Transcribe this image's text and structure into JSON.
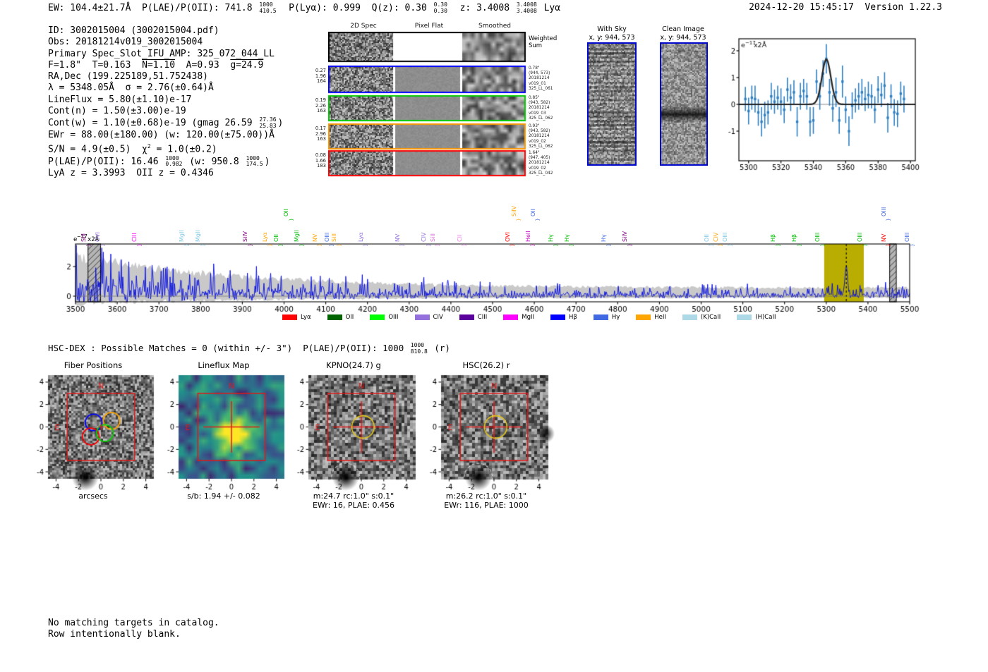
{
  "header": {
    "left_segments": [
      {
        "t": "EW: 104.4±21.7Å  P(LAE)/P(OII): 741.8 "
      },
      {
        "hi": "1000",
        "lo": "410.5"
      },
      {
        "t": "  P(Lyα): 0.999  Q(z): 0.30 "
      },
      {
        "hi": "0.30",
        "lo": "0.30"
      },
      {
        "t": "  z: 3.4008 "
      },
      {
        "hi": "3.4008",
        "lo": "3.4008"
      },
      {
        "t": " Lyα"
      }
    ],
    "datetime_version": "2024-12-20 15:45:17  Version 1.22.3"
  },
  "info_lines": [
    [
      {
        "t": "ID: 3002015004 (3002015004.pdf)"
      }
    ],
    [
      {
        "t": "Obs: 20181214v019_3002015004"
      }
    ],
    [
      {
        "t": "Primary Spec_Slot_IFU_AMP: 325_072_044_LL"
      }
    ],
    [
      {
        "t": "F=1.8\"  T=0.163  "
      },
      {
        "t": "N=1.10",
        "ov": true
      },
      {
        "t": "  A=0.93  "
      },
      {
        "t": "g=24.9",
        "ov": true
      }
    ],
    [
      {
        "t": "RA,Dec (199.225189,51.752438)"
      }
    ],
    [
      {
        "t": "λ = 5348.05Å  σ = 2.76(±0.64)Å"
      }
    ],
    [
      {
        "t": "LineFlux = 5.80(±1.10)e-17"
      }
    ],
    [
      {
        "t": "Cont(n) = 1.50(±3.00)e-19"
      }
    ],
    [
      {
        "t": "Cont(w) = 1.10(±0.68)e-19 (gmag 26.59 "
      },
      {
        "hi": "27.36",
        "lo": "25.83"
      },
      {
        "t": ")"
      }
    ],
    [
      {
        "t": "EWr = 88.00(±180.00) (w: 120.00(±75.00))Å"
      }
    ],
    [
      {
        "t": "S/N = 4.9(±0.5)  χ"
      },
      {
        "sup": "2"
      },
      {
        "t": " = 1.0(±0.2)"
      }
    ],
    [
      {
        "t": "P(LAE)/P(OII): 16.46 "
      },
      {
        "hi": "1000",
        "lo": "0.982"
      },
      {
        "t": " (w: 950.8 "
      },
      {
        "hi": "1000",
        "lo": "174.5"
      },
      {
        "t": ")"
      }
    ],
    [
      {
        "t": "LyA z = 3.3993  OII z = 0.4346"
      }
    ]
  ],
  "spec2d": {
    "col_headers": [
      "2D Spec",
      "Pixel Flat",
      "Smoothed"
    ],
    "weighted_label": "Weighted\nSum",
    "rows": [
      {
        "border": "#0000ff",
        "left": [
          "0.27",
          "1.96",
          "164"
        ],
        "right": [
          "0.78\"",
          "(944, 573)",
          "20181214",
          "v019_01",
          "325_LL_061"
        ]
      },
      {
        "border": "#00cc00",
        "left": [
          "0.19",
          "2.26",
          "163"
        ],
        "right": [
          "0.85\"",
          "(943, 582)",
          "20181214",
          "v019_03",
          "325_LL_062"
        ]
      },
      {
        "border": "#ff9900",
        "left": [
          "0.17",
          "2.96",
          "163"
        ],
        "right": [
          "0.93\"",
          "(943, 582)",
          "20181214",
          "v019_02",
          "325_LL_062"
        ]
      },
      {
        "border": "#ff0000",
        "left": [
          "0.08",
          "1.66",
          "183"
        ],
        "right": [
          "1.64\"",
          "(947, 405)",
          "20181214",
          "v019_02",
          "325_LL_042"
        ]
      }
    ]
  },
  "sky_panels": [
    {
      "title": "With Sky",
      "subtitle": "x, y: 944, 573"
    },
    {
      "title": "Clean Image",
      "subtitle": "x, y: 944, 573"
    }
  ],
  "units_label_segments": [
    {
      "t": "e"
    },
    {
      "sup": "−17"
    },
    {
      "t": "x2Å"
    }
  ],
  "chart_data": [
    {
      "id": "inset_line_fit",
      "type": "scatter+line",
      "title": "",
      "xlabel": "",
      "ylabel": "e-17 x2Å",
      "xlim": [
        5294,
        5403
      ],
      "ylim": [
        -2.1,
        2.45
      ],
      "xticks": [
        5300,
        5320,
        5340,
        5360,
        5380,
        5400
      ],
      "yticks": [
        -1,
        0,
        1,
        2
      ],
      "gaussian_fit": {
        "center": 5348.05,
        "sigma": 2.76,
        "peak": 1.68,
        "baseline": 0
      },
      "x_start": 5298,
      "x_step": 2,
      "values": [
        0.2,
        -0.25,
        0.25,
        0.2,
        -0.3,
        -0.65,
        -0.4,
        -0.3,
        0.3,
        0.1,
        0.25,
        0.1,
        -0.2,
        0.55,
        0.25,
        0.45,
        -0.65,
        0.3,
        0.5,
        0.3,
        -0.65,
        -0.6,
        0.85,
        0.3,
        1.15,
        1.7,
        0.45,
        -0.15,
        0.45,
        -0.6,
        0.85,
        -0.2,
        -1.0,
        -0.05,
        0.15,
        0.3,
        0.45,
        0.2,
        0.35,
        0.3,
        -0.2,
        0.55,
        0.35,
        0.7,
        -0.5,
        0.3,
        -0.3,
        -0.35,
        0.4,
        0.2
      ],
      "errors": [
        0.45,
        0.5,
        0.45,
        0.5,
        0.5,
        0.55,
        0.5,
        0.45,
        0.5,
        0.45,
        0.45,
        0.5,
        0.5,
        0.45,
        0.5,
        0.45,
        0.55,
        0.5,
        0.45,
        0.5,
        0.55,
        0.5,
        0.45,
        0.5,
        0.5,
        0.55,
        0.5,
        0.5,
        0.55,
        0.5,
        0.6,
        0.5,
        0.55,
        0.5,
        0.45,
        0.5,
        0.5,
        0.45,
        0.5,
        0.45,
        0.5,
        0.5,
        0.45,
        0.5,
        0.55,
        0.45,
        0.5,
        0.5,
        0.45,
        0.5
      ]
    },
    {
      "id": "full_spectrum",
      "type": "line",
      "title": "",
      "xlabel": "",
      "ylabel": "e-17 x2Å",
      "xlim": [
        3500,
        5500
      ],
      "ylim": [
        -0.4,
        3.5
      ],
      "xticks": [
        3500,
        3600,
        3700,
        3800,
        3900,
        4000,
        4100,
        4200,
        4300,
        4400,
        4500,
        4600,
        4700,
        4800,
        4900,
        5000,
        5100,
        5200,
        5300,
        5400,
        5500
      ],
      "yticks": [
        0,
        2
      ],
      "detected_line_center": 5348.05,
      "highlight_band": {
        "x0": 5295,
        "x1": 5390,
        "color": "#b8ad00"
      },
      "hatched_bands": [
        [
          3530,
          3560
        ],
        [
          5452,
          5468
        ]
      ],
      "note": "noisy blue spectrum with gray error envelope, rendered procedurally",
      "emission_lines": [
        {
          "name": "SiII",
          "wl": 3535,
          "color": "#800080"
        },
        {
          "name": "OVI",
          "wl": 3569,
          "color": "#9370db"
        },
        {
          "name": "CIII",
          "wl": 3657,
          "color": "#ff00ff"
        },
        {
          "name": "MgII",
          "wl": 3770,
          "color": "#7ec8e3"
        },
        {
          "name": "MgII",
          "wl": 3809,
          "color": "#7ec8e3"
        },
        {
          "name": "SiIV",
          "wl": 3923,
          "color": "#800080"
        },
        {
          "name": "Lyα",
          "wl": 3970,
          "color": "#ffa500"
        },
        {
          "name": "OII",
          "wl": 3996,
          "color": "#00bb00"
        },
        {
          "name": "OII",
          "wl": 4021,
          "color": "#00bb00",
          "high": true
        },
        {
          "name": "MgII",
          "wl": 4046,
          "color": "#00bb00"
        },
        {
          "name": "NV",
          "wl": 4089,
          "color": "#ffa500"
        },
        {
          "name": "OIII",
          "wl": 4118,
          "color": "#4169e1"
        },
        {
          "name": "SiII",
          "wl": 4136,
          "color": "#ffa500"
        },
        {
          "name": "Lyα",
          "wl": 4199,
          "color": "#9370db"
        },
        {
          "name": "NV",
          "wl": 4287,
          "color": "#9370db"
        },
        {
          "name": "CIV",
          "wl": 4351,
          "color": "#9370db"
        },
        {
          "name": "SiII",
          "wl": 4372,
          "color": "#da70d6"
        },
        {
          "name": "CII",
          "wl": 4436,
          "color": "#ee82ee"
        },
        {
          "name": "OVI",
          "wl": 4551,
          "color": "#ff0000"
        },
        {
          "name": "SiIV",
          "wl": 4566,
          "color": "#ffa500",
          "high": true
        },
        {
          "name": "HeII",
          "wl": 4600,
          "color": "#cc00cc"
        },
        {
          "name": "OII",
          "wl": 4612,
          "color": "#4169e1",
          "high": true
        },
        {
          "name": "Hγ",
          "wl": 4655,
          "color": "#00bb00"
        },
        {
          "name": "Hγ",
          "wl": 4693,
          "color": "#00bb00"
        },
        {
          "name": "Hγ",
          "wl": 4782,
          "color": "#4169e1"
        },
        {
          "name": "SiIV",
          "wl": 4833,
          "color": "#800080"
        },
        {
          "name": "OII",
          "wl": 5028,
          "color": "#7ec8e3"
        },
        {
          "name": "CIV",
          "wl": 5050,
          "color": "#ffa500"
        },
        {
          "name": "OIII",
          "wl": 5073,
          "color": "#7ec8e3"
        },
        {
          "name": "Hβ",
          "wl": 5188,
          "color": "#00bb00"
        },
        {
          "name": "Hβ",
          "wl": 5239,
          "color": "#00bb00"
        },
        {
          "name": "OIII",
          "wl": 5295,
          "color": "#00bb00"
        },
        {
          "name": "OIII",
          "wl": 5396,
          "color": "#00bb00"
        },
        {
          "name": "OIII",
          "wl": 5453,
          "color": "#4169e1",
          "high": true
        },
        {
          "name": "NV",
          "wl": 5453,
          "color": "#ff0000"
        },
        {
          "name": "OIII",
          "wl": 5510,
          "color": "#4169e1"
        }
      ],
      "legend": [
        {
          "label": "Lyα",
          "color": "#ff0000"
        },
        {
          "label": "OII",
          "color": "#006400"
        },
        {
          "label": "OIII",
          "color": "#00ff00"
        },
        {
          "label": "CIV",
          "color": "#9370db"
        },
        {
          "label": "CIII",
          "color": "#5a009d"
        },
        {
          "label": "MgII",
          "color": "#ff00ff"
        },
        {
          "label": "Hβ",
          "color": "#0000ff"
        },
        {
          "label": "Hγ",
          "color": "#4169e1"
        },
        {
          "label": "HeII",
          "color": "#ffa500"
        },
        {
          "label": "(K)CaII",
          "color": "#add8e6"
        },
        {
          "label": "(H)CaII",
          "color": "#add8e6"
        }
      ]
    }
  ],
  "hsc_line_segments": [
    {
      "t": "HSC-DEX : Possible Matches = 0 (within +/- 3\")  P(LAE)/P(OII): 1000 "
    },
    {
      "hi": "1000",
      "lo": "810.8"
    },
    {
      "t": " (r)"
    }
  ],
  "cutouts": {
    "xticks": [
      "-4",
      "-2",
      "0",
      "2",
      "4"
    ],
    "yticks": [
      "4",
      "2",
      "0",
      "-2",
      "-4"
    ],
    "compass": {
      "north": "N",
      "east": "E"
    },
    "panels": [
      {
        "title": "Fiber Positions",
        "caption1": "arcsecs",
        "caption2": ""
      },
      {
        "title": "Lineflux Map",
        "caption1": "s/b: 1.94 +/- 0.082",
        "caption2": ""
      },
      {
        "title": "KPNO(24.7) g",
        "caption1": "m:24.7 rc:1.0\"  s:0.1\"",
        "caption2": "EWr: 16, PLAE: 0.456"
      },
      {
        "title": "HSC(26.2) r",
        "caption1": "m:26.2 rc:1.0\"  s:0.1\"",
        "caption2": "EWr: 116, PLAE: 1000"
      }
    ]
  },
  "footer_lines": "No matching targets in catalog.\nRow intentionally blank."
}
